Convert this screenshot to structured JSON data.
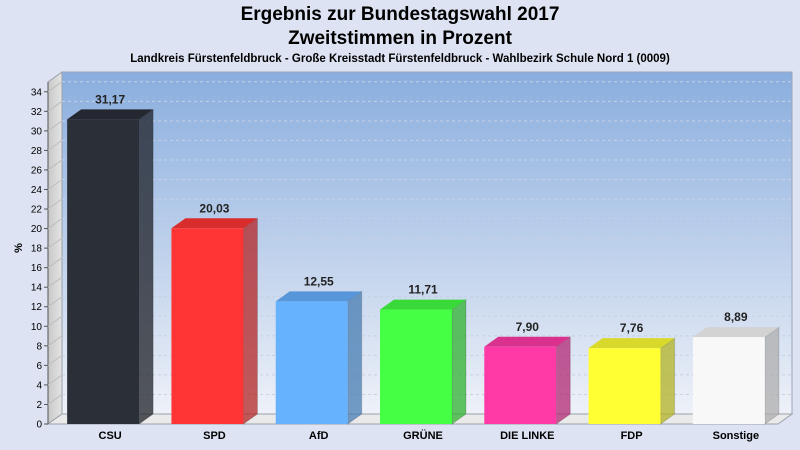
{
  "title_line1": "Ergebnis zur Bundestagswahl 2017",
  "title_line2": "Zweitstimmen in Prozent",
  "subtitle": "Landkreis Fürstenfeldbruck - Große Kreisstadt Fürstenfeldbruck - Wahlbezirk Schule Nord 1 (0009)",
  "chart_data": {
    "type": "bar",
    "title": "Ergebnis zur Bundestagswahl 2017 / Zweitstimmen in Prozent",
    "subtitle": "Landkreis Fürstenfeldbruck - Große Kreisstadt Fürstenfeldbruck - Wahlbezirk Schule Nord 1 (0009)",
    "ylabel": "%",
    "xlabel": "",
    "ylim": [
      0,
      35
    ],
    "ytick_step": 2,
    "grid": true,
    "legend": "none",
    "categories": [
      "CSU",
      "SPD",
      "AfD",
      "GRÜNE",
      "DIE LINKE",
      "FDP",
      "Sonstige"
    ],
    "values": [
      31.17,
      20.03,
      12.55,
      11.71,
      7.9,
      7.76,
      8.89
    ],
    "value_labels": [
      "31,17",
      "20,03",
      "12,55",
      "11,71",
      "7,90",
      "7,76",
      "8,89"
    ],
    "colors": [
      "#2b2f38",
      "#ff3535",
      "#66b2ff",
      "#44ff44",
      "#ff3aa6",
      "#ffff33",
      "#f8f8f8"
    ]
  }
}
